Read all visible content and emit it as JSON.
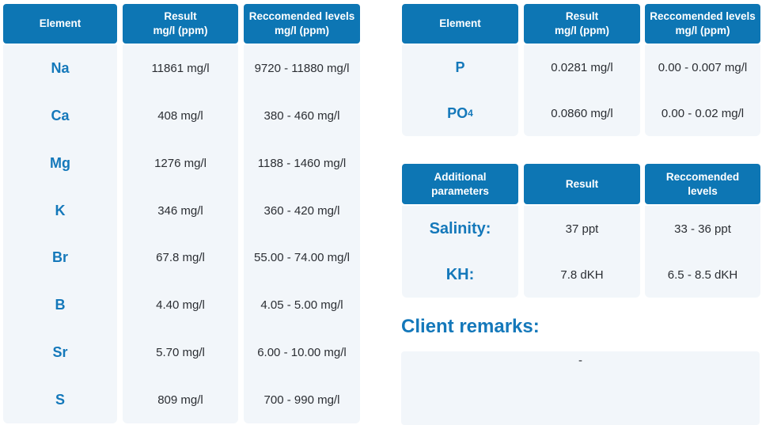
{
  "colors": {
    "header_bg": "#0d76b4",
    "header_text": "#ffffff",
    "body_bg": "#f2f6fa",
    "label_blue": "#1478ba",
    "value_text": "#2b2e33"
  },
  "elements_table": {
    "columns": [
      {
        "line1": "Element",
        "line2": ""
      },
      {
        "line1": "Result",
        "line2": "mg/l (ppm)"
      },
      {
        "line1": "Reccomended levels",
        "line2": "mg/l (ppm)"
      }
    ],
    "rows": [
      {
        "element": "Na",
        "result": "11861 mg/l",
        "recommended": "9720 - 11880 mg/l"
      },
      {
        "element": "Ca",
        "result": "408 mg/l",
        "recommended": "380 - 460 mg/l"
      },
      {
        "element": "Mg",
        "result": "1276 mg/l",
        "recommended": "1188 - 1460 mg/l"
      },
      {
        "element": "K",
        "result": "346 mg/l",
        "recommended": "360 - 420 mg/l"
      },
      {
        "element": "Br",
        "result": "67.8 mg/l",
        "recommended": "55.00 - 74.00 mg/l"
      },
      {
        "element": "B",
        "result": "4.40 mg/l",
        "recommended": "4.05 - 5.00 mg/l"
      },
      {
        "element": "Sr",
        "result": "5.70 mg/l",
        "recommended": "6.00 - 10.00 mg/l"
      },
      {
        "element": "S",
        "result": "809 mg/l",
        "recommended": "700 - 990 mg/l"
      }
    ]
  },
  "phosphorus_table": {
    "columns": [
      {
        "line1": "Element",
        "line2": ""
      },
      {
        "line1": "Result",
        "line2": "mg/l (ppm)"
      },
      {
        "line1": "Reccomended levels",
        "line2": "mg/l (ppm)"
      }
    ],
    "rows": [
      {
        "element": "P",
        "sub": "",
        "result": "0.0281 mg/l",
        "recommended": "0.00 - 0.007 mg/l"
      },
      {
        "element": "PO",
        "sub": "4",
        "result": "0.0860 mg/l",
        "recommended": "0.00 - 0.02 mg/l"
      }
    ]
  },
  "additional_table": {
    "columns": [
      {
        "line1": "Additional",
        "line2": "parameters"
      },
      {
        "line1": "Result",
        "line2": ""
      },
      {
        "line1": "Reccomended",
        "line2": "levels"
      }
    ],
    "rows": [
      {
        "parameter": "Salinity:",
        "result": "37 ppt",
        "recommended": "33 - 36 ppt"
      },
      {
        "parameter": "KH:",
        "result": "7.8 dKH",
        "recommended": "6.5 - 8.5 dKH"
      }
    ]
  },
  "client_remarks": {
    "heading": "Client remarks:",
    "content": "-"
  }
}
